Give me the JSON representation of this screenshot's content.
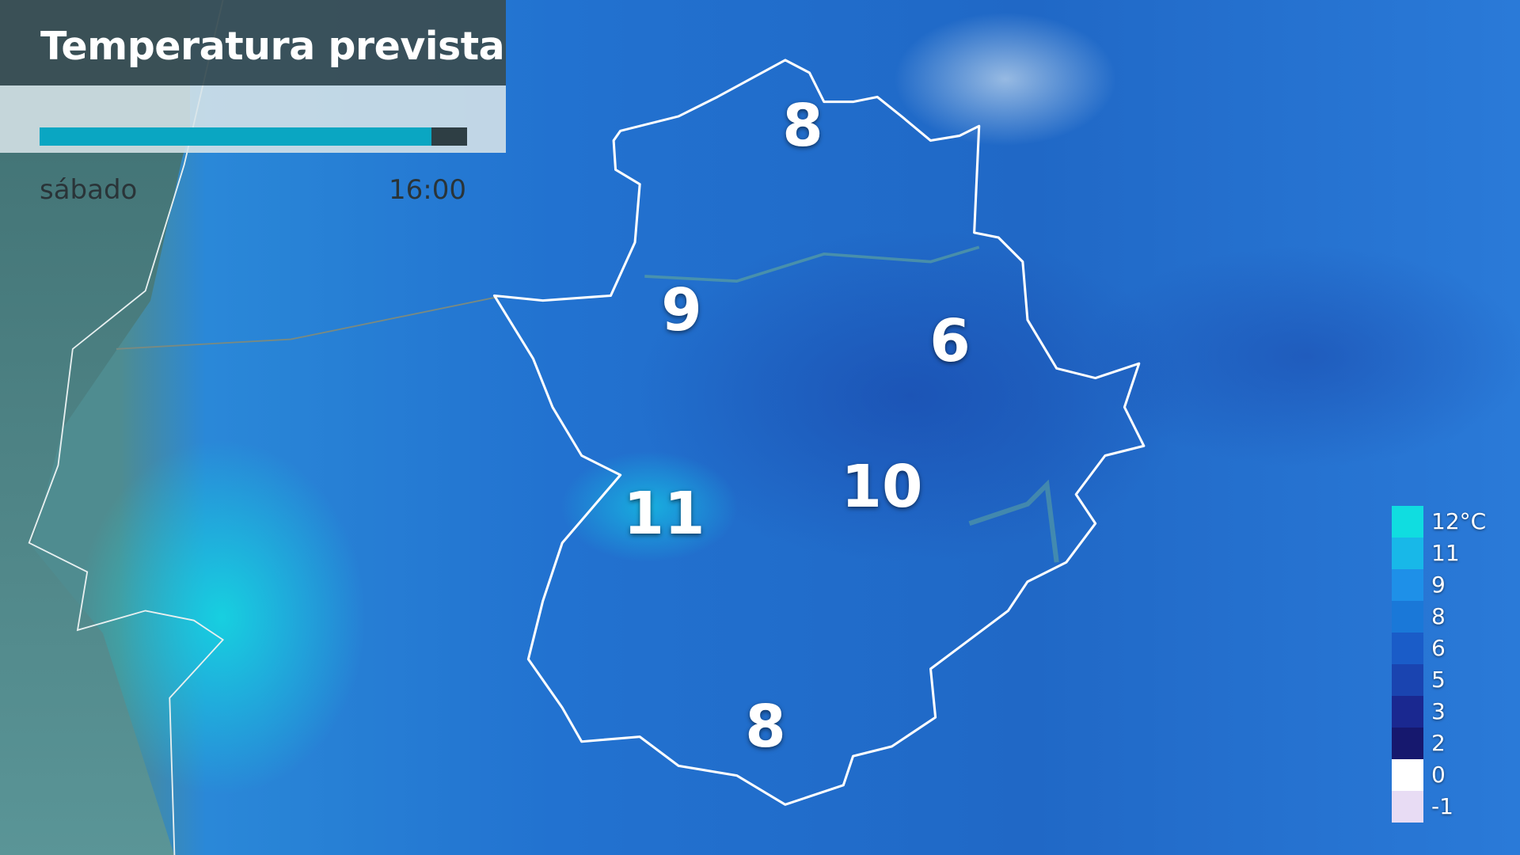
{
  "header": {
    "title": "Temperatura prevista",
    "day": "sábado",
    "time": "16:00",
    "progress_fraction": 0.916
  },
  "map": {
    "labels": [
      {
        "value": "8"
      },
      {
        "value": "9"
      },
      {
        "value": "6"
      },
      {
        "value": "10"
      },
      {
        "value": "11"
      },
      {
        "value": "8"
      }
    ]
  },
  "legend": {
    "items": [
      {
        "label": "12°C",
        "color": "#10dde0"
      },
      {
        "label": "11",
        "color": "#18b8e8"
      },
      {
        "label": "9",
        "color": "#1e90e8"
      },
      {
        "label": "8",
        "color": "#1a78d8"
      },
      {
        "label": "6",
        "color": "#1a5cc8"
      },
      {
        "label": "5",
        "color": "#1a44b0"
      },
      {
        "label": "3",
        "color": "#1a2890"
      },
      {
        "label": "2",
        "color": "#16186e"
      },
      {
        "label": "0",
        "color": "#ffffff"
      },
      {
        "label": "-1",
        "color": "#e8dcf4"
      }
    ]
  }
}
